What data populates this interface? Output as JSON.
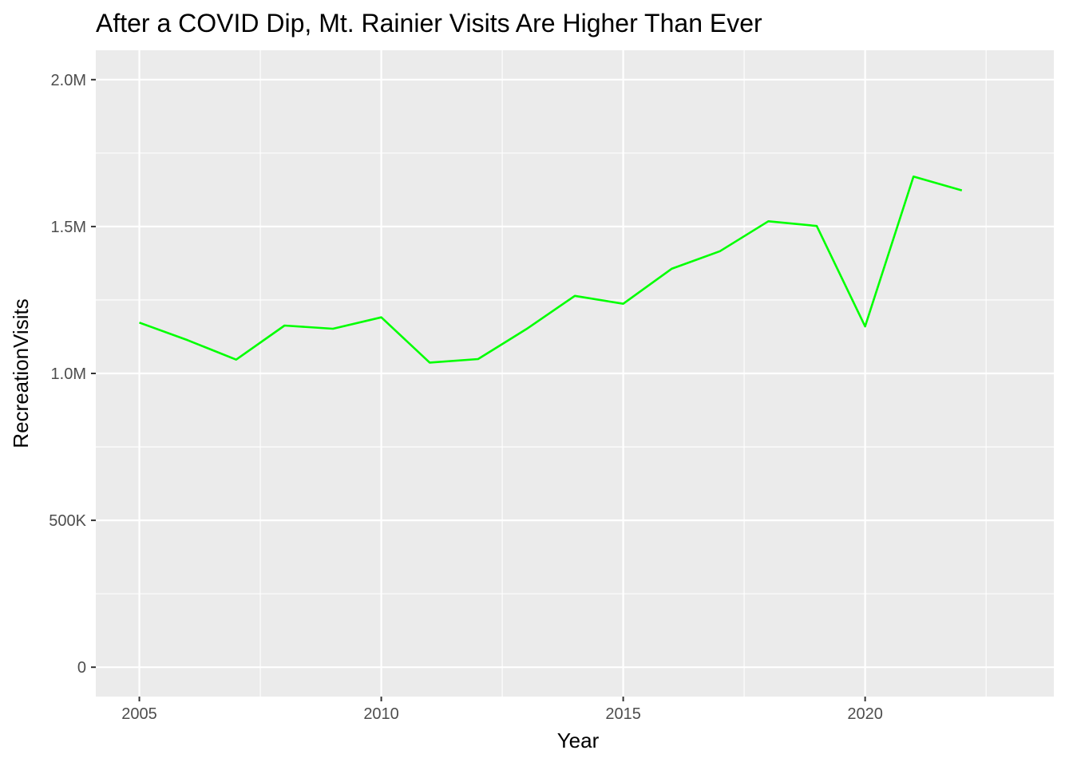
{
  "chart_data": {
    "type": "line",
    "title": "After a COVID Dip, Mt. Rainier Visits Are Higher Than Ever",
    "xlabel": "Year",
    "ylabel": "RecreationVisits",
    "x": [
      2005,
      2006,
      2007,
      2008,
      2009,
      2010,
      2011,
      2012,
      2013,
      2014,
      2015,
      2016,
      2017,
      2018,
      2019,
      2020,
      2021,
      2022
    ],
    "y": [
      1173000,
      1113000,
      1047000,
      1163000,
      1152000,
      1191000,
      1037000,
      1049000,
      1151000,
      1264000,
      1237000,
      1356000,
      1416000,
      1518000,
      1502000,
      1160000,
      1670000,
      1623000
    ],
    "xlim": [
      2004.1,
      2023.9
    ],
    "ylim": [
      -100000,
      2100000
    ],
    "x_ticks": [
      2005,
      2010,
      2015,
      2020
    ],
    "x_tick_labels": [
      "2005",
      "2010",
      "2015",
      "2020"
    ],
    "y_ticks": [
      0,
      500000,
      1000000,
      1500000,
      2000000
    ],
    "y_tick_labels": [
      "0",
      "500K",
      "1.0M",
      "1.5M",
      "2.0M"
    ],
    "line_color": "#00ff00",
    "panel_background": "#ebebeb",
    "grid_color": "#ffffff",
    "grid": true,
    "legend": "none"
  }
}
